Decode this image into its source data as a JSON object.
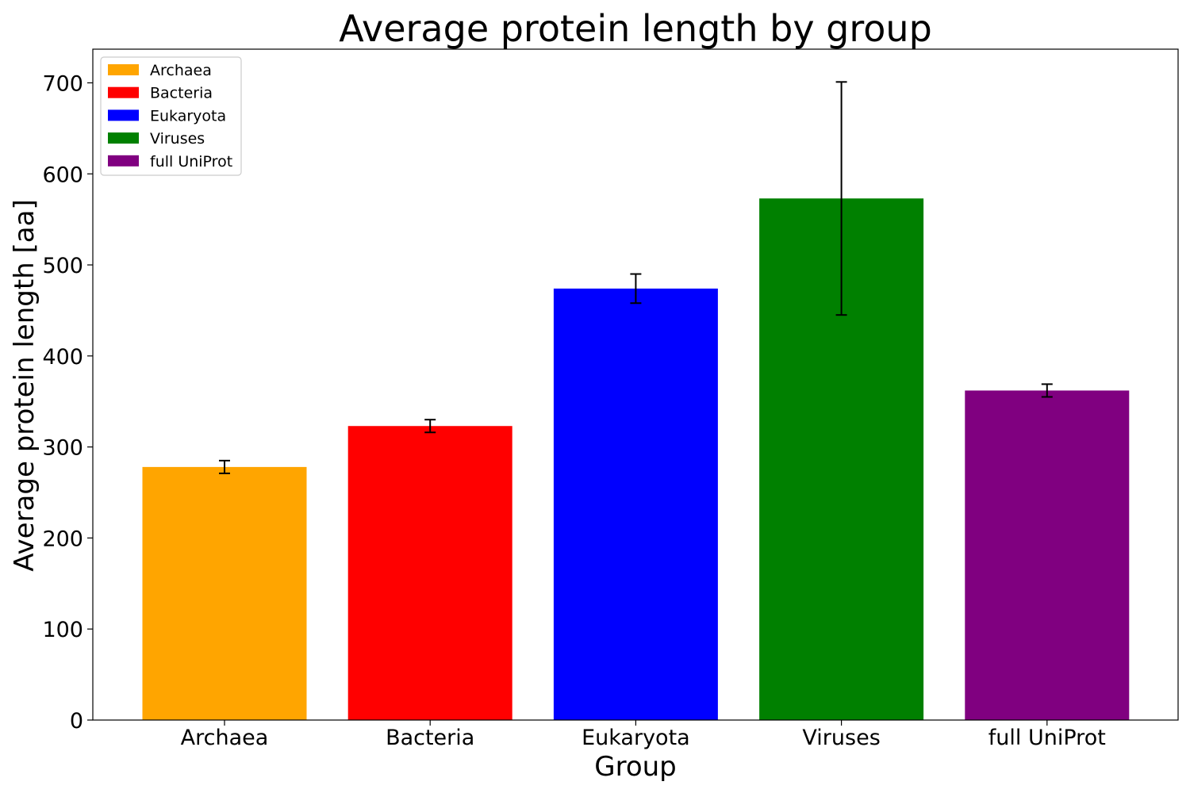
{
  "chart_data": {
    "type": "bar",
    "title": "Average protein length by group",
    "xlabel": "Group",
    "ylabel": "Average protein length [aa]",
    "categories": [
      "Archaea",
      "Bacteria",
      "Eukaryota",
      "Viruses",
      "full UniProt"
    ],
    "values": [
      278,
      323,
      474,
      573,
      362
    ],
    "error": [
      7,
      7,
      16,
      128,
      7
    ],
    "colors": [
      "#FFA500",
      "#FF0000",
      "#0000FF",
      "#008000",
      "#800080"
    ],
    "ylim": [
      0,
      737
    ],
    "yticks": [
      0,
      100,
      200,
      300,
      400,
      500,
      600,
      700
    ],
    "legend": {
      "placement": "top-left",
      "entries": [
        "Archaea",
        "Bacteria",
        "Eukaryota",
        "Viruses",
        "full UniProt"
      ]
    },
    "grid": false
  }
}
